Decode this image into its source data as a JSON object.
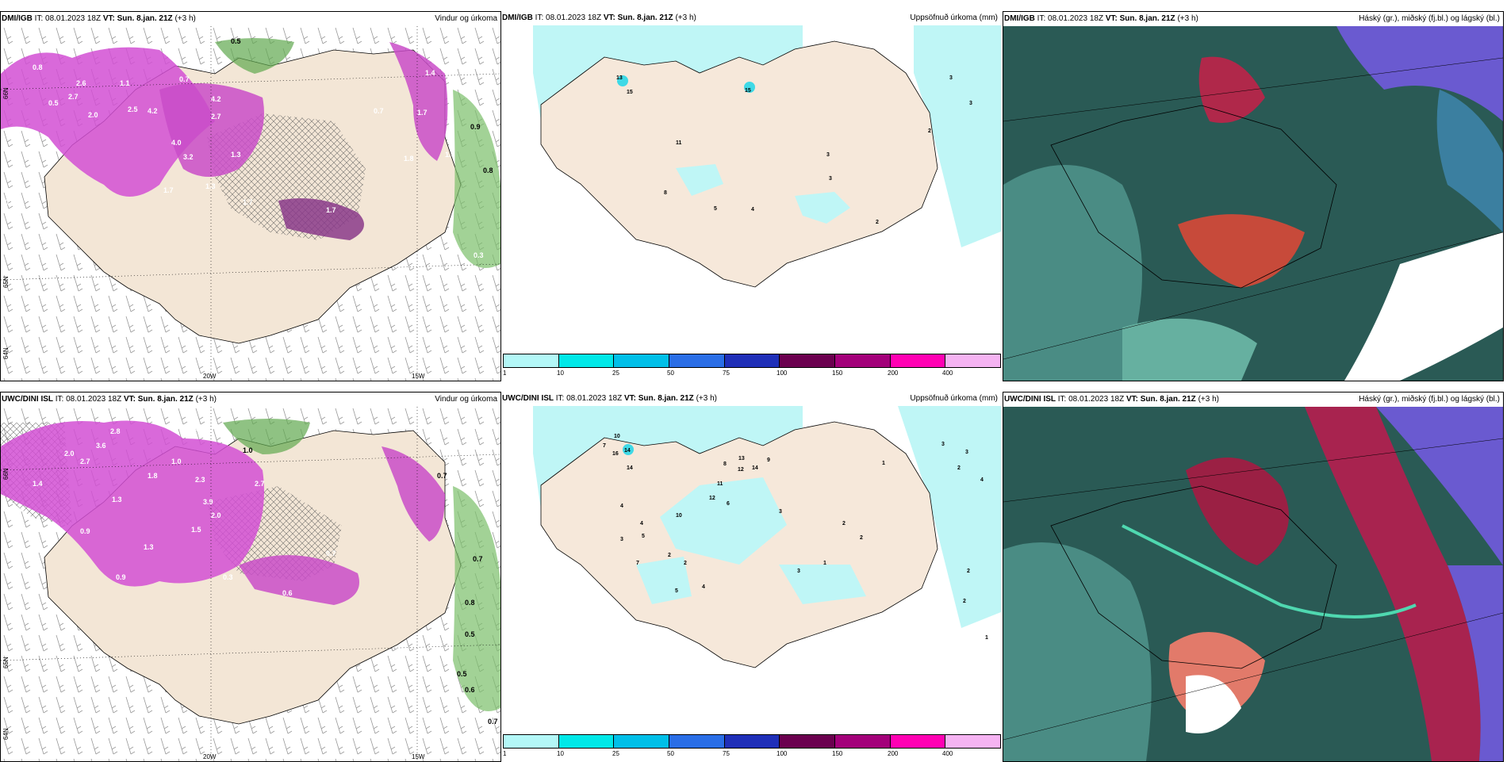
{
  "rows": [
    {
      "model": "DMI/IGB",
      "it": "IT: 08.01.2023 18Z",
      "vt_label": "VT:",
      "vt": "Sun. 8.jan. 21Z",
      "lead": "(+3 h)"
    },
    {
      "model": "UWC/DINI ISL",
      "it": "IT: 08.01.2023 18Z",
      "vt_label": "VT:",
      "vt": "Sun. 8.jan. 21Z",
      "lead": "(+3 h)"
    }
  ],
  "panel_titles": {
    "wind": "Vindur og úrkoma",
    "precip": "Uppsöfnuð úrkoma (mm)",
    "cloud": "Háský (gr.), miðský (fj.bl.) og lágský (bl.)"
  },
  "axes": {
    "lon": [
      "20W",
      "15W"
    ],
    "lat": [
      "66N",
      "64N",
      "65N"
    ]
  },
  "colorbar": {
    "ticks": [
      "1",
      "10",
      "25",
      "50",
      "75",
      "100",
      "150",
      "200",
      "400"
    ],
    "colors": [
      "#b3f7f7",
      "#00e8e8",
      "#00bfe8",
      "#2a6ee6",
      "#1f2fb8",
      "#6b004f",
      "#a3007a",
      "#ff00b3",
      "#f5b3f2"
    ]
  },
  "dmi_wind_labels": [
    "0.5",
    "0.8",
    "2.6",
    "2.7",
    "2.0",
    "1.1",
    "0.7",
    "2.5",
    "2.7",
    "4.2",
    "4.0",
    "3.2",
    "4.2",
    "1.3",
    "1.7",
    "1.3",
    "1.7",
    "1.7",
    "0.5",
    "1.4",
    "1.7",
    "1.6",
    "0.9",
    "0.8",
    "0.3",
    "0.5",
    "1.8",
    "0.7"
  ],
  "dmi_precip_labels": [
    "13",
    "15",
    "15",
    "11",
    "8",
    "3",
    "3",
    "5",
    "4",
    "3",
    "3",
    "2",
    "2"
  ],
  "uwc_wind_labels": [
    "0.4",
    "2.8",
    "3.6",
    "2.7",
    "2.0",
    "1.8",
    "1.3",
    "1.0",
    "1.0",
    "2.3",
    "3.9",
    "2.0",
    "1.5",
    "0.9",
    "0.6",
    "0.7",
    "0.3",
    "0.7",
    "0.7",
    "0.8",
    "0.5",
    "0.5",
    "0.6",
    "0.7",
    "1.4",
    "0.9",
    "1.3",
    "2.7"
  ],
  "uwc_precip_labels": [
    "10",
    "7",
    "16",
    "14",
    "14",
    "8",
    "13",
    "12",
    "14",
    "11",
    "12",
    "9",
    "4",
    "10",
    "6",
    "4",
    "5",
    "3",
    "7",
    "2",
    "2",
    "5",
    "4",
    "3",
    "2",
    "3",
    "1",
    "2",
    "3",
    "3",
    "1",
    "4",
    "2",
    "2",
    "1",
    "2"
  ]
}
